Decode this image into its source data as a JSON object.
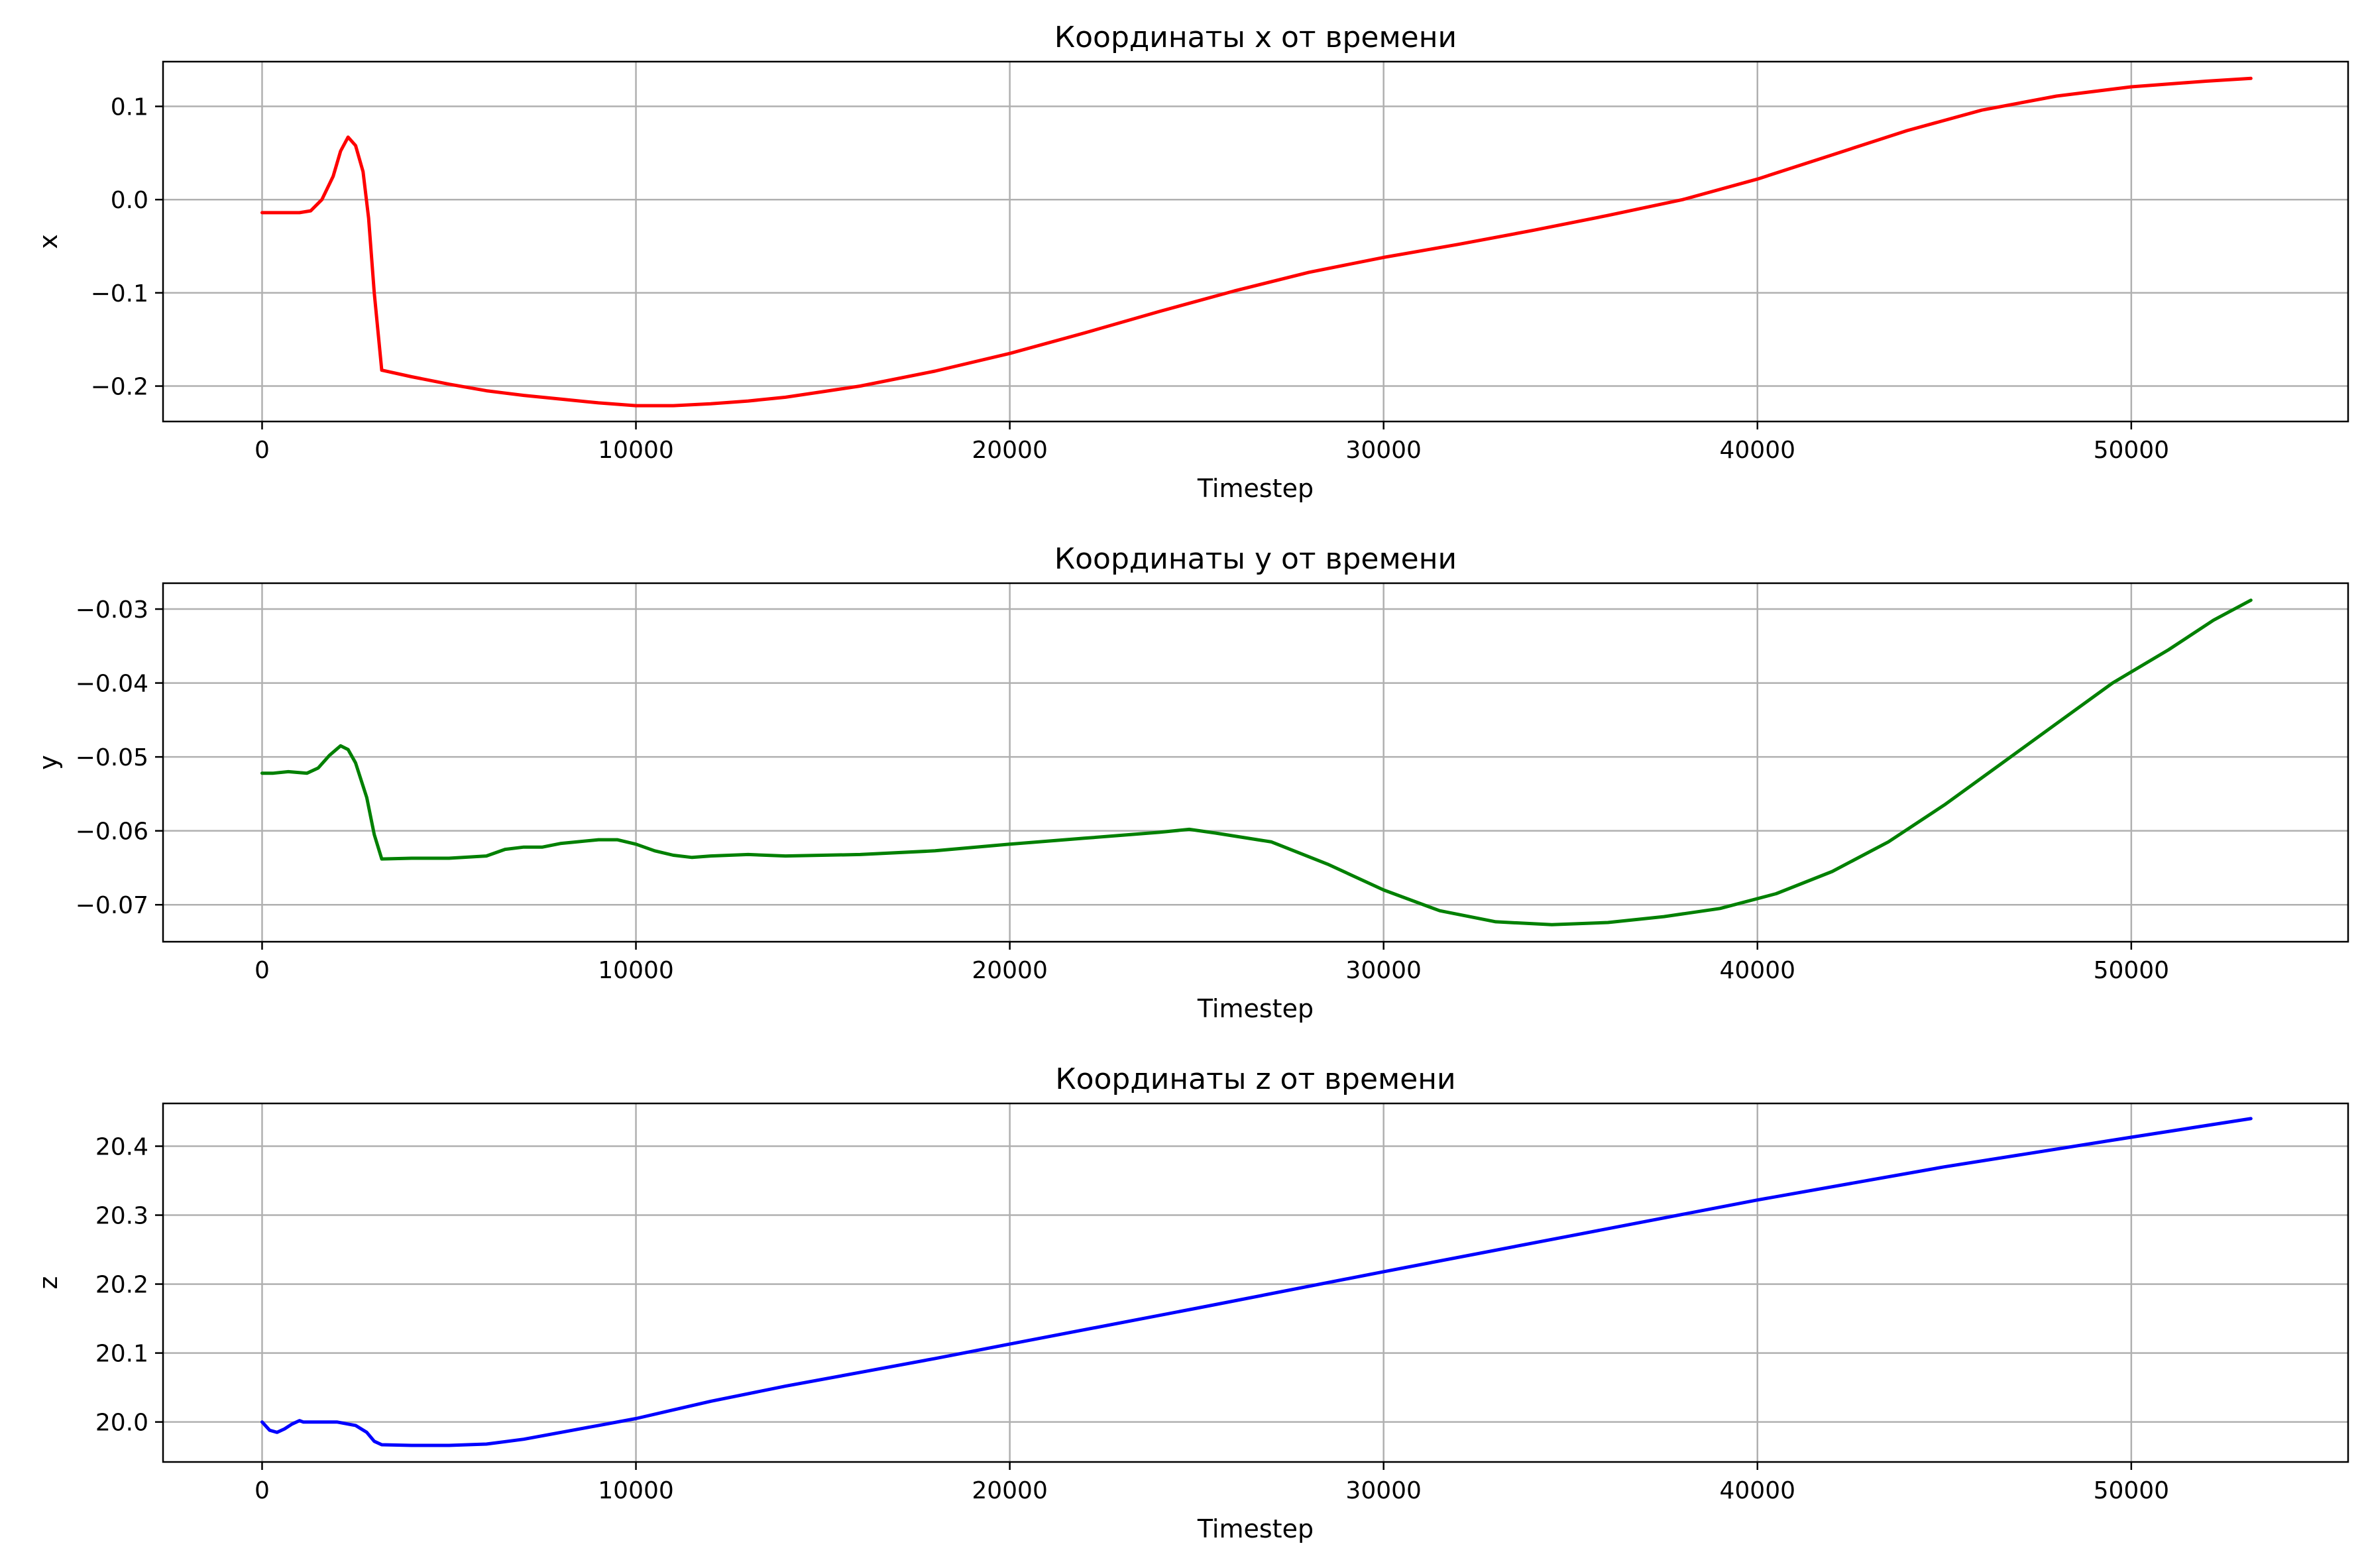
{
  "chart_data": [
    {
      "type": "line",
      "title": "Координаты x от времени",
      "xlabel": "Timestep",
      "ylabel": "x",
      "xlim": [
        -2650,
        55800
      ],
      "ylim": [
        -0.238,
        0.148
      ],
      "xticks": [
        0,
        10000,
        20000,
        30000,
        40000,
        50000
      ],
      "xtick_labels": [
        "0",
        "10000",
        "20000",
        "30000",
        "40000",
        "50000"
      ],
      "yticks": [
        -0.2,
        -0.1,
        0.0,
        0.1
      ],
      "ytick_labels": [
        "−0.2",
        "−0.1",
        "0.0",
        "0.1"
      ],
      "grid": true,
      "series": [
        {
          "color": "#ff0000",
          "x": [
            0,
            500,
            1000,
            1300,
            1600,
            1900,
            2100,
            2300,
            2500,
            2700,
            2850,
            3000,
            3200,
            4000,
            5000,
            6000,
            7000,
            8000,
            9000,
            10000,
            11000,
            12000,
            13000,
            14000,
            15000,
            16000,
            18000,
            20000,
            22000,
            24000,
            26000,
            28000,
            30000,
            32000,
            34000,
            36000,
            38000,
            40000,
            42000,
            44000,
            46000,
            48000,
            50000,
            52000,
            53200
          ],
          "y": [
            -0.014,
            -0.014,
            -0.014,
            -0.012,
            0.0,
            0.025,
            0.052,
            0.067,
            0.058,
            0.03,
            -0.02,
            -0.1,
            -0.183,
            -0.19,
            -0.198,
            -0.205,
            -0.21,
            -0.214,
            -0.218,
            -0.221,
            -0.221,
            -0.219,
            -0.216,
            -0.212,
            -0.206,
            -0.2,
            -0.184,
            -0.165,
            -0.143,
            -0.12,
            -0.098,
            -0.078,
            -0.062,
            -0.048,
            -0.033,
            -0.017,
            0.0,
            0.022,
            0.048,
            0.074,
            0.096,
            0.111,
            0.121,
            0.127,
            0.13
          ]
        }
      ]
    },
    {
      "type": "line",
      "title": "Координаты y от времени",
      "xlabel": "Timestep",
      "ylabel": "y",
      "xlim": [
        -2650,
        55800
      ],
      "ylim": [
        -0.075,
        -0.0265
      ],
      "xticks": [
        0,
        10000,
        20000,
        30000,
        40000,
        50000
      ],
      "xtick_labels": [
        "0",
        "10000",
        "20000",
        "30000",
        "40000",
        "50000"
      ],
      "yticks": [
        -0.07,
        -0.06,
        -0.05,
        -0.04,
        -0.03
      ],
      "ytick_labels": [
        "−0.07",
        "−0.06",
        "−0.05",
        "−0.04",
        "−0.03"
      ],
      "grid": true,
      "series": [
        {
          "color": "#008000",
          "x": [
            0,
            300,
            700,
            1200,
            1500,
            1800,
            2100,
            2300,
            2500,
            2800,
            3000,
            3200,
            4000,
            5000,
            6000,
            6500,
            7000,
            7500,
            8000,
            9000,
            9500,
            10000,
            10500,
            11000,
            11500,
            12000,
            13000,
            14000,
            16000,
            18000,
            20000,
            22000,
            24000,
            24800,
            25500,
            27000,
            28500,
            30000,
            31500,
            33000,
            34500,
            36000,
            37500,
            39000,
            40500,
            42000,
            43500,
            45000,
            46500,
            48000,
            49500,
            51000,
            52200,
            53200
          ],
          "y": [
            -0.0522,
            -0.0522,
            -0.052,
            -0.0522,
            -0.0515,
            -0.0498,
            -0.0485,
            -0.049,
            -0.0508,
            -0.0555,
            -0.0605,
            -0.0638,
            -0.0637,
            -0.0637,
            -0.0634,
            -0.0625,
            -0.0622,
            -0.0622,
            -0.0617,
            -0.0612,
            -0.0612,
            -0.0618,
            -0.0627,
            -0.0633,
            -0.0636,
            -0.0634,
            -0.0632,
            -0.0634,
            -0.0632,
            -0.0627,
            -0.0618,
            -0.061,
            -0.0602,
            -0.0598,
            -0.0603,
            -0.0615,
            -0.0645,
            -0.068,
            -0.0708,
            -0.0723,
            -0.0727,
            -0.0724,
            -0.0716,
            -0.0705,
            -0.0685,
            -0.0655,
            -0.0615,
            -0.0565,
            -0.051,
            -0.0455,
            -0.04,
            -0.0355,
            -0.0315,
            -0.0288
          ]
        }
      ]
    },
    {
      "type": "line",
      "title": "Координаты z от времени",
      "xlabel": "Timestep",
      "ylabel": "z",
      "xlim": [
        -2650,
        55800
      ],
      "ylim": [
        19.942,
        20.462
      ],
      "xticks": [
        0,
        10000,
        20000,
        30000,
        40000,
        50000
      ],
      "xtick_labels": [
        "0",
        "10000",
        "20000",
        "30000",
        "40000",
        "50000"
      ],
      "yticks": [
        20.0,
        20.1,
        20.2,
        20.3,
        20.4
      ],
      "ytick_labels": [
        "20.0",
        "20.1",
        "20.2",
        "20.3",
        "20.4"
      ],
      "grid": true,
      "series": [
        {
          "color": "#0000ff",
          "x": [
            0,
            200,
            400,
            600,
            800,
            1000,
            1100,
            1500,
            2000,
            2500,
            2800,
            3000,
            3200,
            4000,
            5000,
            6000,
            7000,
            8000,
            9000,
            10000,
            12000,
            14000,
            16000,
            18000,
            20000,
            25000,
            30000,
            35000,
            40000,
            45000,
            50000,
            53200
          ],
          "y": [
            20.0,
            19.988,
            19.985,
            19.99,
            19.997,
            20.002,
            20.0,
            20.0,
            20.0,
            19.995,
            19.985,
            19.972,
            19.967,
            19.966,
            19.966,
            19.968,
            19.975,
            19.985,
            19.995,
            20.005,
            20.03,
            20.052,
            20.072,
            20.092,
            20.113,
            20.165,
            20.218,
            20.27,
            20.322,
            20.37,
            20.413,
            20.44
          ]
        }
      ]
    }
  ]
}
